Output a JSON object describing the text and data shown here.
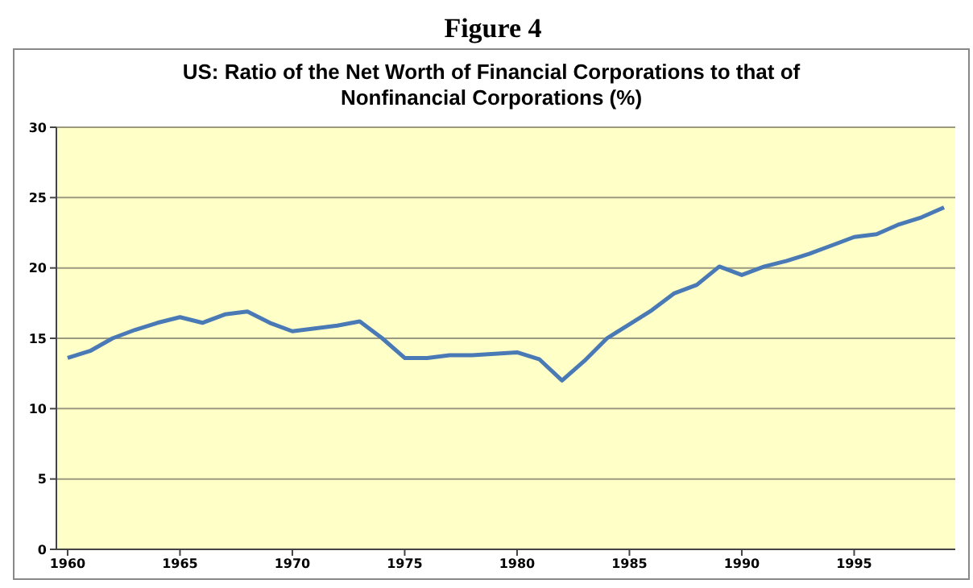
{
  "chart_data": {
    "type": "line",
    "title": "Figure 4",
    "subtitle": "US: Ratio of the Net Worth of Financial Corporations to that of Nonfinancial Corporations (%)",
    "x": [
      1960,
      1961,
      1962,
      1963,
      1964,
      1965,
      1966,
      1967,
      1968,
      1969,
      1970,
      1971,
      1972,
      1973,
      1974,
      1975,
      1976,
      1977,
      1978,
      1979,
      1980,
      1981,
      1982,
      1983,
      1984,
      1985,
      1986,
      1987,
      1988,
      1989,
      1990,
      1991,
      1992,
      1993,
      1994,
      1995,
      1996,
      1997,
      1998,
      1999
    ],
    "series": [
      {
        "color": "#4a7ab5",
        "values": [
          13.6,
          14.1,
          15.0,
          15.6,
          16.1,
          16.5,
          16.1,
          16.7,
          16.9,
          16.1,
          15.5,
          15.7,
          15.9,
          16.2,
          15.0,
          13.6,
          13.6,
          13.8,
          13.8,
          13.9,
          14.0,
          13.5,
          12.0,
          13.4,
          15.0,
          16.0,
          17.0,
          18.2,
          18.8,
          20.1,
          19.5,
          20.1,
          20.5,
          21.0,
          21.6,
          22.2,
          22.4,
          23.1,
          23.6,
          24.3
        ]
      }
    ],
    "xlim": [
      1959.5,
      1999.5
    ],
    "xticks": [
      1960,
      1965,
      1970,
      1975,
      1980,
      1985,
      1990,
      1995
    ],
    "ylim": [
      0,
      30
    ],
    "yticks": [
      0,
      5,
      10,
      15,
      20,
      25,
      30
    ],
    "grid": "y",
    "legend": false,
    "marker": "none",
    "line_style": "solid"
  }
}
